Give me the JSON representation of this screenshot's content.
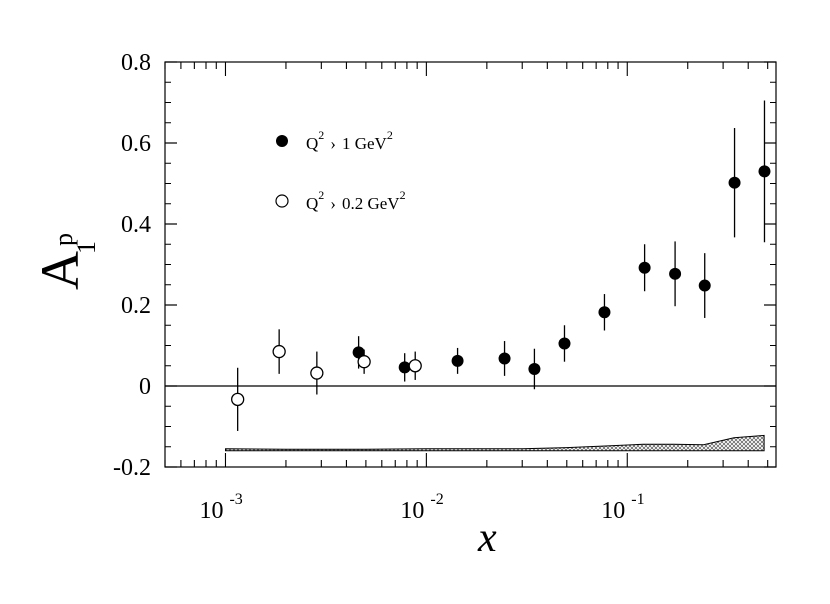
{
  "chart_data": {
    "type": "scatter",
    "xscale": "log",
    "xlim": [
      0.0005,
      0.55
    ],
    "ylim": [
      -0.2,
      0.8
    ],
    "yticks": [
      "-0.2",
      "0",
      "0.2",
      "0.4",
      "0.6",
      "0.8"
    ],
    "xticks": [
      {
        "base": "10",
        "exp": "-3"
      },
      {
        "base": "10",
        "exp": "-2"
      },
      {
        "base": "10",
        "exp": "-1"
      }
    ],
    "ylabel": {
      "main": "A",
      "sup": "p",
      "sub": "1"
    },
    "xlabel": "x",
    "zero_line": true,
    "legend_position": "top-left",
    "series": [
      {
        "name": {
          "q": "Q",
          "q_exp": "2",
          "cmp": "›",
          "value": "1 GeV",
          "unit_exp": "2"
        },
        "marker": "filled-circle",
        "points": [
          {
            "x": 0.0046,
            "y": 0.083,
            "err": 0.04
          },
          {
            "x": 0.0078,
            "y": 0.046,
            "err": 0.035
          },
          {
            "x": 0.0143,
            "y": 0.062,
            "err": 0.032
          },
          {
            "x": 0.0245,
            "y": 0.068,
            "err": 0.043
          },
          {
            "x": 0.0345,
            "y": 0.042,
            "err": 0.05
          },
          {
            "x": 0.0487,
            "y": 0.105,
            "err": 0.045
          },
          {
            "x": 0.077,
            "y": 0.182,
            "err": 0.045
          },
          {
            "x": 0.122,
            "y": 0.292,
            "err": 0.058
          },
          {
            "x": 0.173,
            "y": 0.277,
            "err": 0.08
          },
          {
            "x": 0.243,
            "y": 0.248,
            "err": 0.08
          },
          {
            "x": 0.342,
            "y": 0.502,
            "err": 0.135
          },
          {
            "x": 0.482,
            "y": 0.53,
            "err": 0.175
          }
        ]
      },
      {
        "name": {
          "q": "Q",
          "q_exp": "2",
          "cmp": "›",
          "value": "0.2 GeV",
          "unit_exp": "2"
        },
        "marker": "open-circle",
        "points": [
          {
            "x": 0.00115,
            "y": -0.033,
            "err": 0.078
          },
          {
            "x": 0.00185,
            "y": 0.085,
            "err": 0.055
          },
          {
            "x": 0.00285,
            "y": 0.032,
            "err": 0.053
          },
          {
            "x": 0.0049,
            "y": 0.06,
            "err": 0.03
          },
          {
            "x": 0.0088,
            "y": 0.05,
            "err": 0.035
          }
        ]
      }
    ],
    "systematic_band": {
      "x": [
        0.001,
        0.002,
        0.005,
        0.01,
        0.02,
        0.03,
        0.05,
        0.08,
        0.12,
        0.17,
        0.24,
        0.34,
        0.48
      ],
      "lower": [
        -0.16,
        -0.16,
        -0.16,
        -0.16,
        -0.16,
        -0.16,
        -0.16,
        -0.16,
        -0.16,
        -0.16,
        -0.16,
        -0.16,
        -0.16
      ],
      "upper": [
        -0.155,
        -0.156,
        -0.156,
        -0.155,
        -0.155,
        -0.155,
        -0.152,
        -0.148,
        -0.144,
        -0.144,
        -0.145,
        -0.128,
        -0.122
      ]
    }
  }
}
